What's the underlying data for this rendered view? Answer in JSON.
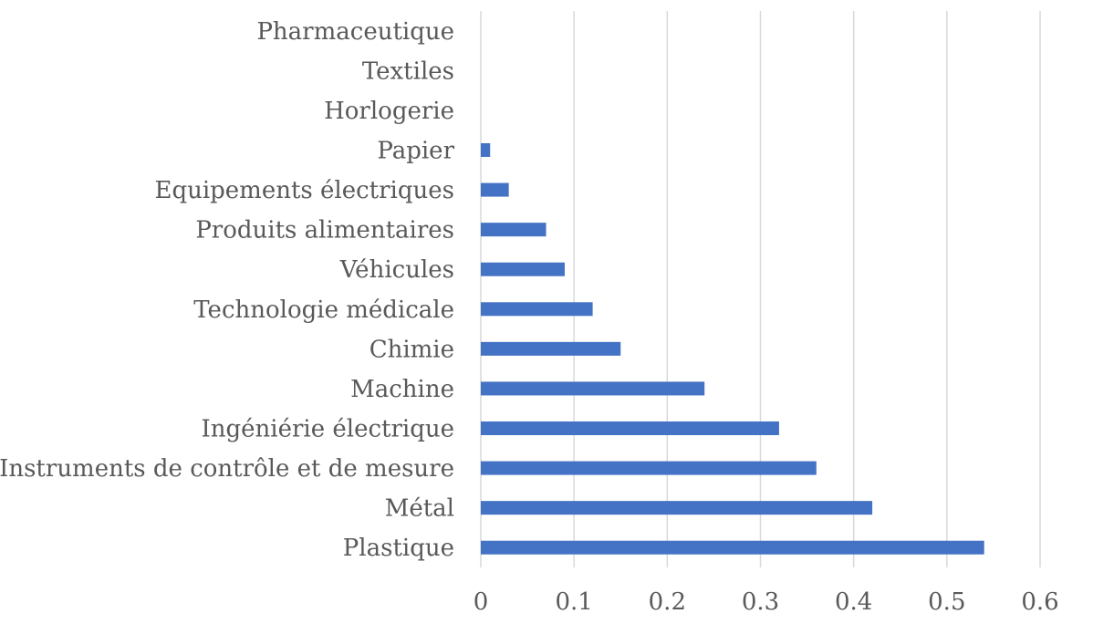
{
  "chart_data": {
    "type": "bar",
    "orientation": "horizontal",
    "categories": [
      "Plastique",
      "Métal",
      "Instruments de contrôle et de mesure",
      "Ingéniérie électrique",
      "Machine",
      "Chimie",
      "Technologie médicale",
      "Véhicules",
      "Produits alimentaires",
      "Equipements électriques",
      "Papier",
      "Horlogerie",
      "Textiles",
      "Pharmaceutique"
    ],
    "values": [
      0.54,
      0.42,
      0.36,
      0.32,
      0.24,
      0.15,
      0.12,
      0.09,
      0.07,
      0.03,
      0.01,
      0,
      0,
      0
    ],
    "xlim": [
      0,
      0.6
    ],
    "x_ticks": [
      "0",
      "0.1",
      "0.2",
      "0.3",
      "0.4",
      "0.5",
      "0.6"
    ],
    "grid": "vertical",
    "legend": "none",
    "bar_color": "#4472c4"
  }
}
